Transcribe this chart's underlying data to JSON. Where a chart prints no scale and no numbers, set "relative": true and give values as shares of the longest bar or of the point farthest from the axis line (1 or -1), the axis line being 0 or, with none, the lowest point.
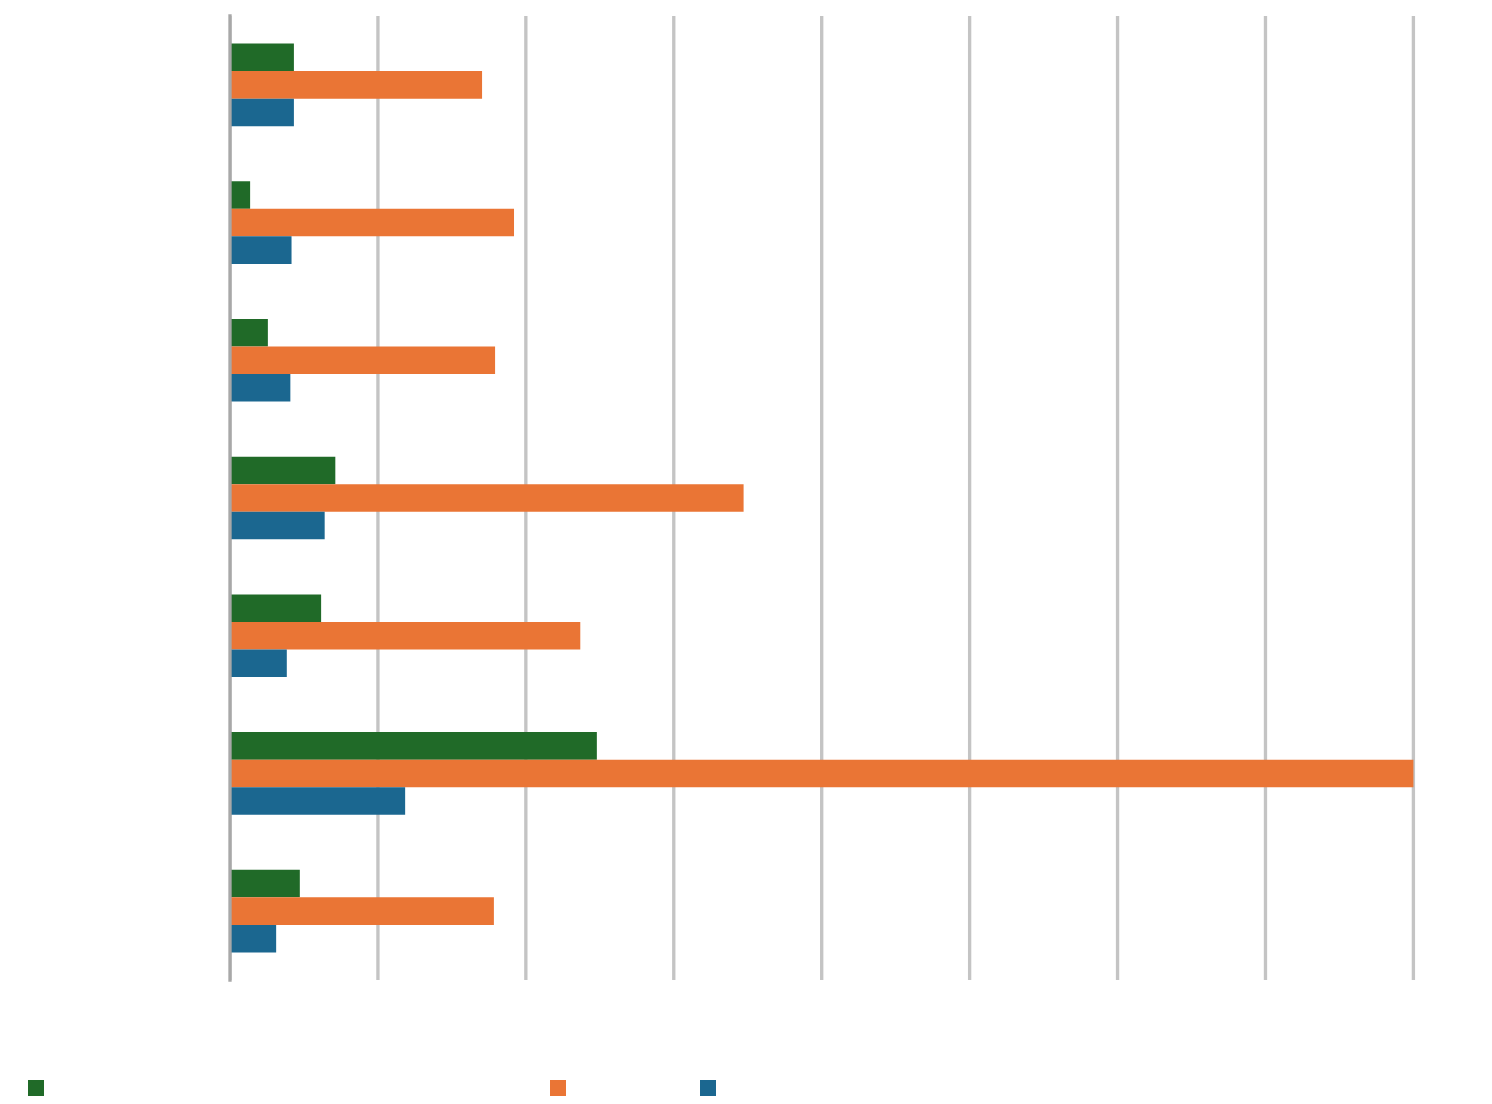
{
  "chart_data": {
    "type": "bar",
    "orientation": "horizontal",
    "relative": true,
    "grid": "x",
    "categories": [
      null,
      null,
      null,
      null,
      null,
      null,
      null
    ],
    "series": [
      {
        "color": "#206a28",
        "values": [
          0.054,
          0.017,
          0.032,
          0.089,
          0.077,
          0.31,
          0.059
        ]
      },
      {
        "color": "#ea7535",
        "values": [
          0.213,
          0.24,
          0.224,
          0.434,
          0.296,
          1,
          0.223
        ]
      },
      {
        "color": "#1b6790",
        "values": [
          0.054,
          0.052,
          0.051,
          0.08,
          0.048,
          0.148,
          0.039
        ]
      }
    ]
  }
}
